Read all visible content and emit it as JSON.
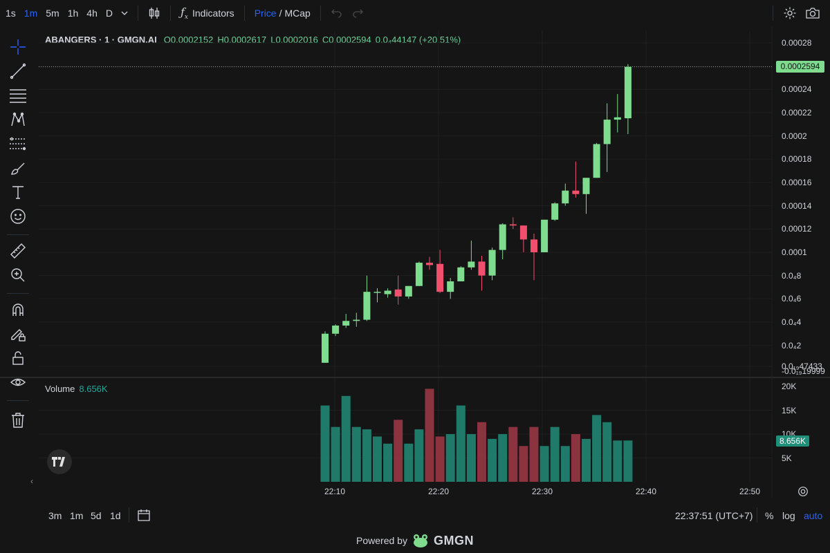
{
  "toolbar": {
    "timeframes": [
      "1s",
      "1m",
      "5m",
      "1h",
      "4h",
      "D"
    ],
    "active_timeframe": "1m",
    "indicators_label": "Indicators",
    "price_label": "Price",
    "slash": "/",
    "mcap_label": "MCap"
  },
  "legend": {
    "symbol": "ABANGERS · 1 · GMGN.AI",
    "o": "O0.0002152",
    "h": "H0.0002617",
    "l": "L0.0002016",
    "c": "C0.0002594",
    "change": "0.0₄44147 (+20.51%)"
  },
  "volume": {
    "label": "Volume",
    "value": "8.656K"
  },
  "price_badge": "0.0002594",
  "volume_badge": "8.656K",
  "price_axis": [
    "0.00028",
    "0.00026",
    "0.00024",
    "0.00022",
    "0.0002",
    "0.00018",
    "0.00016",
    "0.00014",
    "0.00012",
    "0.0001",
    "0.0₄8",
    "0.0₄6",
    "0.0₄4",
    "0.0₄2",
    "0.0₁₉47433",
    "-0.0₁₉19999"
  ],
  "volume_axis": [
    "20K",
    "15K",
    "10K",
    "5K"
  ],
  "time_axis": [
    "22:10",
    "22:20",
    "22:30",
    "22:40",
    "22:50"
  ],
  "bottom": {
    "ranges": [
      "3m",
      "1m",
      "5d",
      "1d"
    ],
    "clock": "22:37:51 (UTC+7)",
    "percent": "%",
    "log": "log",
    "auto": "auto"
  },
  "footer": {
    "powered": "Powered by",
    "brand": "GMGN"
  },
  "colors": {
    "up": "#7fdc8f",
    "down": "#f0506e",
    "vol_up": "#1f7a6a",
    "vol_down": "#8c3340",
    "accent": "#2962ff"
  },
  "chart_data": {
    "type": "candlestick",
    "interval": "1m",
    "times": [
      "22:08",
      "22:09",
      "22:10",
      "22:11",
      "22:12",
      "22:13",
      "22:14",
      "22:15",
      "22:16",
      "22:17",
      "22:18",
      "22:19",
      "22:20",
      "22:21",
      "22:22",
      "22:23",
      "22:24",
      "22:25",
      "22:26",
      "22:27",
      "22:28",
      "22:29",
      "22:30",
      "22:31",
      "22:32",
      "22:33",
      "22:34",
      "22:35",
      "22:36",
      "22:37"
    ],
    "candles": [
      {
        "o": 5e-06,
        "h": 3.2e-05,
        "l": 5e-06,
        "c": 3e-05
      },
      {
        "o": 3e-05,
        "h": 3.8e-05,
        "l": 2.8e-05,
        "c": 3.7e-05
      },
      {
        "o": 3.7e-05,
        "h": 4.7e-05,
        "l": 3.5e-05,
        "c": 4.1e-05
      },
      {
        "o": 4.1e-05,
        "h": 4.8e-05,
        "l": 3.6e-05,
        "c": 4.2e-05
      },
      {
        "o": 4.2e-05,
        "h": 8e-05,
        "l": 4.1e-05,
        "c": 6.6e-05
      },
      {
        "o": 6.6e-05,
        "h": 6.9e-05,
        "l": 5.7e-05,
        "c": 6.6e-05
      },
      {
        "o": 6.4e-05,
        "h": 6.9e-05,
        "l": 6.1e-05,
        "c": 6.7e-05
      },
      {
        "o": 6.8e-05,
        "h": 8e-05,
        "l": 5.5e-05,
        "c": 6.2e-05
      },
      {
        "o": 6.2e-05,
        "h": 7.1e-05,
        "l": 6e-05,
        "c": 7.1e-05
      },
      {
        "o": 7.1e-05,
        "h": 9.2e-05,
        "l": 7.1e-05,
        "c": 9.1e-05
      },
      {
        "o": 9.1e-05,
        "h": 9.6e-05,
        "l": 8.5e-05,
        "c": 8.9e-05
      },
      {
        "o": 9e-05,
        "h": 0.000102,
        "l": 6.5e-05,
        "c": 6.6e-05
      },
      {
        "o": 6.6e-05,
        "h": 7.8e-05,
        "l": 6e-05,
        "c": 7.5e-05
      },
      {
        "o": 7.5e-05,
        "h": 8.8e-05,
        "l": 7.5e-05,
        "c": 8.7e-05
      },
      {
        "o": 8.7e-05,
        "h": 0.00011,
        "l": 8.5e-05,
        "c": 9.2e-05
      },
      {
        "o": 9.2e-05,
        "h": 9.7e-05,
        "l": 6.7e-05,
        "c": 8e-05
      },
      {
        "o": 8e-05,
        "h": 0.000104,
        "l": 7.6e-05,
        "c": 0.000102
      },
      {
        "o": 0.000102,
        "h": 0.000125,
        "l": 9.4e-05,
        "c": 0.000124
      },
      {
        "o": 0.000124,
        "h": 0.00013,
        "l": 0.00012,
        "c": 0.000123
      },
      {
        "o": 0.000123,
        "h": 0.000123,
        "l": 0.0001,
        "c": 0.000111
      },
      {
        "o": 0.000111,
        "h": 0.000116,
        "l": 7.6e-05,
        "c": 0.0001
      },
      {
        "o": 0.0001,
        "h": 0.000128,
        "l": 0.0001,
        "c": 0.000128
      },
      {
        "o": 0.000128,
        "h": 0.000143,
        "l": 0.000127,
        "c": 0.000142
      },
      {
        "o": 0.000142,
        "h": 0.000159,
        "l": 0.00014,
        "c": 0.000153
      },
      {
        "o": 0.000153,
        "h": 0.000178,
        "l": 0.000147,
        "c": 0.00015
      },
      {
        "o": 0.00015,
        "h": 0.000164,
        "l": 0.000133,
        "c": 0.000164
      },
      {
        "o": 0.000164,
        "h": 0.000194,
        "l": 0.000164,
        "c": 0.000193
      },
      {
        "o": 0.000193,
        "h": 0.000228,
        "l": 0.000169,
        "c": 0.000214
      },
      {
        "o": 0.000214,
        "h": 0.000236,
        "l": 0.000203,
        "c": 0.000216
      },
      {
        "o": 0.0002152,
        "h": 0.0002617,
        "l": 0.0002016,
        "c": 0.0002594
      }
    ],
    "volumes": [
      16000,
      11500,
      18000,
      11500,
      11000,
      9500,
      8000,
      13000,
      8000,
      11000,
      19500,
      9500,
      10000,
      16000,
      10000,
      12500,
      9000,
      10000,
      11500,
      7500,
      11500,
      7500,
      11500,
      7500,
      10000,
      9000,
      14000,
      12500,
      8656,
      8656
    ],
    "price_range": [
      -5.2e-06,
      0.00028
    ],
    "volume_range": [
      0,
      20000
    ],
    "grid": true
  }
}
